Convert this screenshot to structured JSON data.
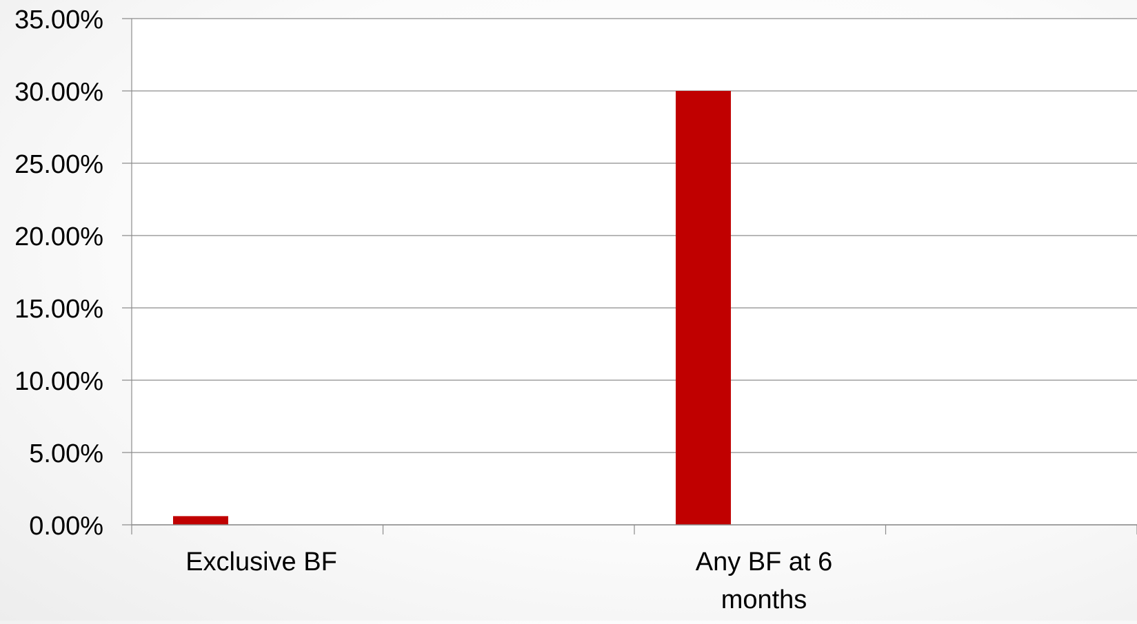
{
  "chart_data": {
    "type": "bar",
    "categories": [
      "Exclusive BF",
      "Any BF at 6 months"
    ],
    "category_label_lines": [
      [
        "Exclusive BF"
      ],
      [
        "Any BF at 6",
        "months"
      ]
    ],
    "series": [
      {
        "values": [
          0.6,
          30.0
        ]
      }
    ],
    "ylim": [
      0,
      35
    ],
    "yticks": [
      "0.00%",
      "5.00%",
      "10.00%",
      "15.00%",
      "20.00%",
      "25.00%",
      "30.00%",
      "35.00%"
    ],
    "ytick_values": [
      0,
      5,
      10,
      15,
      20,
      25,
      30,
      35
    ],
    "grid": true,
    "bar_color": "#C00000",
    "gridline_color": "#8c8c8c"
  }
}
